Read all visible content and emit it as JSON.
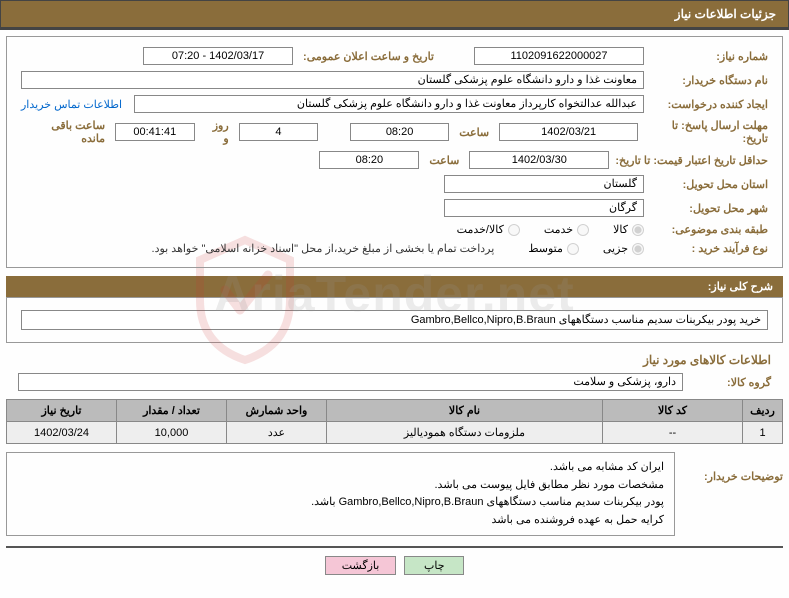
{
  "header_title": "جزئیات اطلاعات نیاز",
  "labels": {
    "need_no": "شماره نیاز:",
    "announce_dt": "تاریخ و ساعت اعلان عمومی:",
    "buyer_org": "نام دستگاه خریدار:",
    "requester": "ایجاد کننده درخواست:",
    "deadline": "مهلت ارسال پاسخ: تا تاریخ:",
    "time": "ساعت",
    "days_and": "روز و",
    "time_left": "ساعت باقی مانده",
    "validity": "حداقل تاریخ اعتبار قیمت: تا تاریخ:",
    "province": "استان محل تحویل:",
    "city": "شهر محل تحویل:",
    "category": "طبقه بندی موضوعی:",
    "buy_type": "نوع فرآیند خرید :",
    "contact": "اطلاعات تماس خریدار",
    "overall": "شرح کلی نیاز:",
    "goods_info": "اطلاعات کالاهای مورد نیاز",
    "goods_group": "گروه کالا:",
    "buyer_notes": "توضیحات خریدار:"
  },
  "fields": {
    "need_no": "1102091622000027",
    "announce_dt": "1402/03/17 - 07:20",
    "buyer_org": "معاونت غذا و دارو دانشگاه علوم پزشکی گلستان",
    "requester": "عبدالله عدالتخواه کارپرداز معاونت غذا و دارو دانشگاه علوم پزشکی گلستان",
    "deadline_date": "1402/03/21",
    "deadline_time": "08:20",
    "days_remain": "4",
    "time_remain": "00:41:41",
    "validity_date": "1402/03/30",
    "validity_time": "08:20",
    "province": "گلستان",
    "city": "گرگان",
    "overall_desc": "خرید پودر بیکربنات سدیم مناسب دستگاههای Gambro,Bellco,Nipro,B.Braun",
    "goods_group": "دارو، پزشکی و سلامت",
    "payment_note": "پرداخت تمام یا بخشی از مبلغ خرید،از محل \"اسناد خزانه اسلامی\" خواهد بود."
  },
  "radios": {
    "cat_goods": "کالا",
    "cat_service": "خدمت",
    "cat_both": "کالا/خدمت",
    "type_partial": "جزیی",
    "type_medium": "متوسط"
  },
  "table": {
    "headers": [
      "ردیف",
      "کد کالا",
      "نام کالا",
      "واحد شمارش",
      "تعداد / مقدار",
      "تاریخ نیاز"
    ],
    "row": [
      "1",
      "--",
      "ملزومات دستگاه همودیالیز",
      "عدد",
      "10,000",
      "1402/03/24"
    ]
  },
  "notes": [
    "ایران کد مشابه می باشد.",
    "مشخصات مورد نظر مطابق فایل پیوست می باشد.",
    "پودر بیکربنات سدیم مناسب دستگاههای Gambro,Bellco,Nipro,B.Braun باشد.",
    "کرایه حمل به عهده فروشنده می باشد"
  ],
  "buttons": {
    "print": "چاپ",
    "back": "بازگشت"
  },
  "col_widths": [
    "40px",
    "140px",
    "auto",
    "100px",
    "110px",
    "110px"
  ]
}
